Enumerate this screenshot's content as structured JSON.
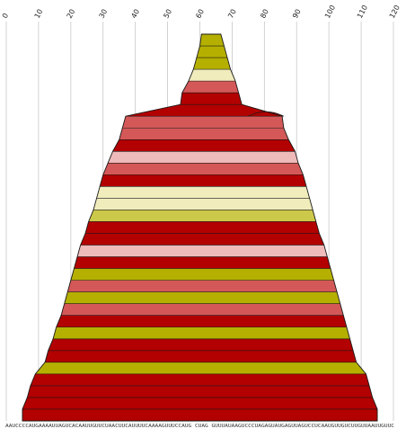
{
  "chart_data": {
    "type": "area",
    "description_hidden": false,
    "title": "",
    "xlabel": "",
    "ylabel": "",
    "xlim": [
      0,
      120
    ],
    "xticks": [
      "0",
      "10",
      "20",
      "30",
      "40",
      "50",
      "60",
      "70",
      "80",
      "90",
      "100",
      "110",
      "120"
    ],
    "grid": true,
    "legend": "none",
    "sequence_label": "AAUCCCCAUGAAAAUUAGUCACAAUUGUUCUAACUUCAUUUUCAAAAGUUUCCAUG CUAG GUUUAUAAGUCCCUAGAGUAUGAGUUAGUCCUCAAUGUUGUCUUGUUAAUUGUUC",
    "colors": {
      "dark_red": "#b30000",
      "salmon": "#d45858",
      "olive": "#b5b000",
      "pale_olive": "#ccc84a",
      "cream": "#f0ecbc",
      "pink": "#efbaba"
    },
    "bands": [
      {
        "left": 60.5,
        "right": 66.5,
        "color": "olive"
      },
      {
        "left": 60.0,
        "right": 67.5,
        "color": "olive"
      },
      {
        "left": 59.0,
        "right": 68.5,
        "color": "olive"
      },
      {
        "left": 58.0,
        "right": 69.5,
        "color": "cream"
      },
      {
        "left": 56.5,
        "right": 71.0,
        "color": "salmon"
      },
      {
        "left": 54.5,
        "right": 72.0,
        "color": "dark_red"
      },
      {
        "left": 54.0,
        "right": 73.0,
        "color": "dark_red"
      },
      {
        "left": 37.0,
        "right": 85.5,
        "color": "salmon"
      },
      {
        "left": 36.0,
        "right": 86.0,
        "color": "salmon"
      },
      {
        "left": 35.0,
        "right": 87.5,
        "color": "dark_red"
      },
      {
        "left": 33.0,
        "right": 89.5,
        "color": "pink"
      },
      {
        "left": 31.5,
        "right": 90.5,
        "color": "salmon"
      },
      {
        "left": 30.0,
        "right": 92.0,
        "color": "dark_red"
      },
      {
        "left": 29.0,
        "right": 93.0,
        "color": "cream"
      },
      {
        "left": 28.0,
        "right": 94.0,
        "color": "cream"
      },
      {
        "left": 27.0,
        "right": 95.0,
        "color": "pale_olive"
      },
      {
        "left": 25.5,
        "right": 96.0,
        "color": "dark_red"
      },
      {
        "left": 24.5,
        "right": 97.0,
        "color": "dark_red"
      },
      {
        "left": 23.0,
        "right": 98.5,
        "color": "pink"
      },
      {
        "left": 22.0,
        "right": 99.5,
        "color": "dark_red"
      },
      {
        "left": 21.0,
        "right": 100.5,
        "color": "olive"
      },
      {
        "left": 20.0,
        "right": 101.5,
        "color": "salmon"
      },
      {
        "left": 19.0,
        "right": 102.5,
        "color": "olive"
      },
      {
        "left": 18.0,
        "right": 103.5,
        "color": "salmon"
      },
      {
        "left": 17.0,
        "right": 104.5,
        "color": "dark_red"
      },
      {
        "left": 15.5,
        "right": 105.5,
        "color": "olive"
      },
      {
        "left": 14.5,
        "right": 106.5,
        "color": "dark_red"
      },
      {
        "left": 13.0,
        "right": 107.5,
        "color": "dark_red"
      },
      {
        "left": 12.0,
        "right": 108.5,
        "color": "olive"
      },
      {
        "left": 9.0,
        "right": 111.5,
        "color": "dark_red"
      },
      {
        "left": 7.5,
        "right": 112.5,
        "color": "dark_red"
      },
      {
        "left": 6.5,
        "right": 113.5,
        "color": "dark_red"
      },
      {
        "left": 5.0,
        "right": 115.0,
        "color": "dark_red"
      }
    ],
    "bump": {
      "left": 75.0,
      "right": 86.0,
      "peak": 80.5,
      "color": "dark_red"
    }
  }
}
